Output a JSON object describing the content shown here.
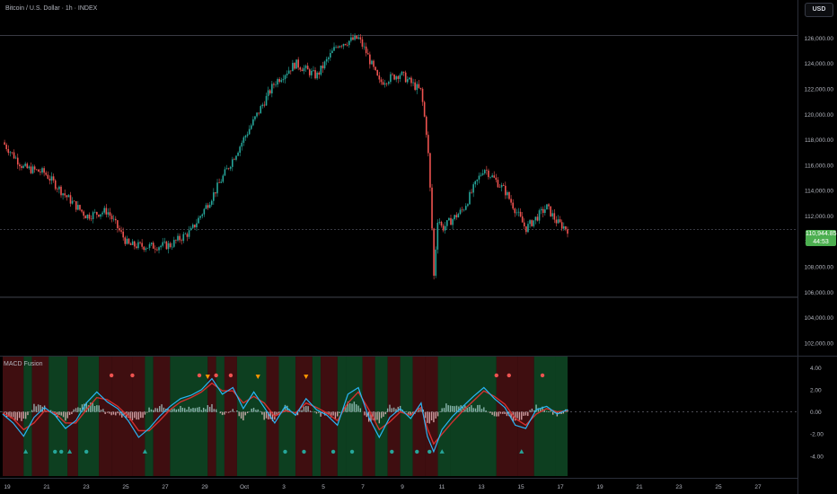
{
  "header": {
    "title": "Bitcoin / U.S. Dollar · 1h · INDEX",
    "currency": "USD"
  },
  "indicator": {
    "title": "MACD Fusion"
  },
  "price_tag": {
    "price": "110,944.85",
    "countdown": "44:53"
  },
  "colors": {
    "up": "#26a69a",
    "down": "#ef5350",
    "macd": "#2962ff",
    "signal": "#4caf50",
    "hist_pos": "#b2dfdb",
    "hist_neg": "#ffcdd2",
    "price_tag": "#4caf50"
  },
  "chart_data": [
    {
      "type": "line",
      "style": "candlestick",
      "x_axis": {
        "labels": [
          "19",
          "21",
          "23",
          "25",
          "27",
          "29",
          "Oct",
          "3",
          "5",
          "7",
          "9",
          "11",
          "13",
          "15",
          "17",
          "19",
          "21",
          "23",
          "25",
          "27"
        ]
      },
      "y_axis": {
        "range": [
          101000,
          129000
        ],
        "ticks": [
          102000,
          104000,
          106000,
          108000,
          110000,
          112000,
          114000,
          116000,
          118000,
          120000,
          122000,
          124000,
          126000,
          128000
        ],
        "tick_labels": [
          "102,000.00",
          "104,000.00",
          "106,000.00",
          "108,000.00",
          "110,000.00",
          "112,000.00",
          "114,000.00",
          "116,000.00",
          "118,000.00",
          "120,000.00",
          "122,000.00",
          "124,000.00",
          "126,000.00",
          "128,000.00"
        ]
      },
      "horizontal_lines": [
        126200,
        110944.85,
        105600
      ],
      "close_path": [
        [
          0,
          117800
        ],
        [
          1,
          115800
        ],
        [
          2,
          115400
        ],
        [
          3,
          113600
        ],
        [
          4,
          112000
        ],
        [
          5,
          112400
        ],
        [
          6,
          109700
        ],
        [
          7,
          109600
        ],
        [
          8,
          109700
        ],
        [
          9,
          110800
        ],
        [
          10,
          113500
        ],
        [
          11,
          116500
        ],
        [
          12,
          119500
        ],
        [
          13,
          122500
        ],
        [
          14,
          124000
        ],
        [
          15,
          123000
        ],
        [
          16,
          125500
        ],
        [
          17,
          126000
        ],
        [
          17.4,
          124800
        ],
        [
          18,
          122500
        ],
        [
          19,
          123200
        ],
        [
          20,
          121800
        ],
        [
          20.3,
          118000
        ],
        [
          20.5,
          112000
        ],
        [
          20.6,
          107000
        ],
        [
          20.8,
          112000
        ],
        [
          21,
          111000
        ],
        [
          22,
          112500
        ],
        [
          23,
          115800
        ],
        [
          24,
          114000
        ],
        [
          25,
          111000
        ],
        [
          26,
          112700
        ],
        [
          26.5,
          111500
        ],
        [
          27,
          110944.85
        ]
      ],
      "last_price": 110944.85
    },
    {
      "type": "line",
      "name": "MACD Fusion",
      "y_axis": {
        "range": [
          -5.8,
          5.0
        ],
        "ticks": [
          4,
          2,
          0,
          -2,
          -4
        ],
        "tick_labels": [
          "4.00",
          "2.00",
          "0.00",
          "-2.00",
          "-4.00"
        ]
      },
      "macd": [
        [
          0,
          -0.2
        ],
        [
          0.5,
          -1.0
        ],
        [
          1,
          -2.2
        ],
        [
          1.5,
          -0.5
        ],
        [
          2,
          0.4
        ],
        [
          2.5,
          -0.3
        ],
        [
          3,
          -1.5
        ],
        [
          3.5,
          -0.8
        ],
        [
          4,
          0.8
        ],
        [
          4.5,
          1.8
        ],
        [
          5,
          0.9
        ],
        [
          5.5,
          0.3
        ],
        [
          6,
          -0.8
        ],
        [
          6.5,
          -2.3
        ],
        [
          7,
          -1.5
        ],
        [
          7.5,
          -0.4
        ],
        [
          8,
          0.5
        ],
        [
          8.5,
          1.2
        ],
        [
          9,
          1.5
        ],
        [
          9.5,
          2.0
        ],
        [
          10,
          3.0
        ],
        [
          10.5,
          1.6
        ],
        [
          11,
          2.2
        ],
        [
          11.5,
          0.3
        ],
        [
          12,
          1.8
        ],
        [
          12.5,
          0.4
        ],
        [
          13,
          -1.0
        ],
        [
          13.5,
          0.5
        ],
        [
          14,
          -0.3
        ],
        [
          14.5,
          1.2
        ],
        [
          15,
          0.2
        ],
        [
          15.5,
          -0.3
        ],
        [
          16,
          -1.2
        ],
        [
          16.5,
          1.6
        ],
        [
          17,
          2.2
        ],
        [
          17.5,
          -0.5
        ],
        [
          18,
          -2.3
        ],
        [
          18.5,
          -0.5
        ],
        [
          19,
          0.3
        ],
        [
          19.5,
          -0.6
        ],
        [
          20,
          0.8
        ],
        [
          20.3,
          -2.2
        ],
        [
          20.6,
          -3.6
        ],
        [
          21,
          -1.6
        ],
        [
          21.5,
          -0.4
        ],
        [
          22,
          0.5
        ],
        [
          22.5,
          1.4
        ],
        [
          23,
          2.2
        ],
        [
          23.5,
          1.2
        ],
        [
          24,
          0.4
        ],
        [
          24.5,
          -1.2
        ],
        [
          25,
          -1.5
        ],
        [
          25.5,
          0.2
        ],
        [
          26,
          0.5
        ],
        [
          26.5,
          -0.2
        ],
        [
          27,
          0.2
        ]
      ],
      "signal": [
        [
          0,
          -0.1
        ],
        [
          0.5,
          -0.6
        ],
        [
          1,
          -1.6
        ],
        [
          1.5,
          -1.0
        ],
        [
          2,
          0.1
        ],
        [
          2.5,
          -0.1
        ],
        [
          3,
          -1.0
        ],
        [
          3.5,
          -1.0
        ],
        [
          4,
          0.2
        ],
        [
          4.5,
          1.3
        ],
        [
          5,
          1.1
        ],
        [
          5.5,
          0.5
        ],
        [
          6,
          -0.4
        ],
        [
          6.5,
          -1.7
        ],
        [
          7,
          -1.7
        ],
        [
          7.5,
          -0.8
        ],
        [
          8,
          0.2
        ],
        [
          8.5,
          0.9
        ],
        [
          9,
          1.3
        ],
        [
          9.5,
          1.8
        ],
        [
          10,
          2.6
        ],
        [
          10.5,
          1.9
        ],
        [
          11,
          1.9
        ],
        [
          11.5,
          0.8
        ],
        [
          12,
          1.4
        ],
        [
          12.5,
          0.8
        ],
        [
          13,
          -0.4
        ],
        [
          13.5,
          0.1
        ],
        [
          14,
          -0.1
        ],
        [
          14.5,
          0.8
        ],
        [
          15,
          0.4
        ],
        [
          15.5,
          -0.1
        ],
        [
          16,
          -0.8
        ],
        [
          16.5,
          0.8
        ],
        [
          17,
          1.8
        ],
        [
          17.5,
          0.2
        ],
        [
          18,
          -1.6
        ],
        [
          18.5,
          -0.9
        ],
        [
          19,
          0.0
        ],
        [
          19.5,
          -0.3
        ],
        [
          20,
          0.4
        ],
        [
          20.3,
          -1.5
        ],
        [
          20.6,
          -2.9
        ],
        [
          21,
          -2.0
        ],
        [
          21.5,
          -0.9
        ],
        [
          22,
          0.1
        ],
        [
          22.5,
          1.0
        ],
        [
          23,
          1.9
        ],
        [
          23.5,
          1.4
        ],
        [
          24,
          0.7
        ],
        [
          24.5,
          -0.6
        ],
        [
          25,
          -1.2
        ],
        [
          25.5,
          -0.2
        ],
        [
          26,
          0.3
        ],
        [
          26.5,
          0.0
        ],
        [
          27,
          0.1
        ]
      ],
      "bg_bands": [
        [
          0,
          1,
          "r"
        ],
        [
          1,
          1.4,
          "g"
        ],
        [
          1.4,
          2.2,
          "r"
        ],
        [
          2.2,
          3.1,
          "g"
        ],
        [
          3.1,
          3.6,
          "r"
        ],
        [
          3.6,
          4.6,
          "g"
        ],
        [
          4.6,
          5.2,
          "r"
        ],
        [
          5.2,
          6.2,
          "r"
        ],
        [
          6.2,
          6.8,
          "r"
        ],
        [
          6.8,
          7.2,
          "g"
        ],
        [
          7.2,
          8.0,
          "r"
        ],
        [
          8.0,
          9.8,
          "g"
        ],
        [
          9.8,
          10.2,
          "r"
        ],
        [
          10.2,
          10.6,
          "g"
        ],
        [
          10.6,
          11.2,
          "r"
        ],
        [
          11.2,
          12.6,
          "g"
        ],
        [
          12.6,
          13.2,
          "r"
        ],
        [
          13.2,
          14.0,
          "g"
        ],
        [
          14.0,
          14.8,
          "r"
        ],
        [
          14.8,
          15.2,
          "g"
        ],
        [
          15.2,
          16.0,
          "r"
        ],
        [
          16.0,
          16.4,
          "g"
        ],
        [
          16.4,
          17.2,
          "g"
        ],
        [
          17.2,
          17.8,
          "r"
        ],
        [
          17.8,
          18.4,
          "g"
        ],
        [
          18.4,
          19.0,
          "r"
        ],
        [
          19.0,
          19.6,
          "g"
        ],
        [
          19.6,
          20.2,
          "r"
        ],
        [
          20.2,
          20.8,
          "r"
        ],
        [
          20.8,
          21.4,
          "g"
        ],
        [
          21.4,
          23.6,
          "g"
        ],
        [
          23.6,
          24.6,
          "r"
        ],
        [
          24.6,
          25.4,
          "r"
        ],
        [
          25.4,
          26.4,
          "g"
        ],
        [
          26.4,
          27,
          "g"
        ]
      ],
      "markers": [
        {
          "x": 5.2,
          "y": 3.3,
          "kind": "dot",
          "color": "#ef5350"
        },
        {
          "x": 6.2,
          "y": 3.3,
          "kind": "dot",
          "color": "#ef5350"
        },
        {
          "x": 9.4,
          "y": 3.3,
          "kind": "dot",
          "color": "#ef5350"
        },
        {
          "x": 10.2,
          "y": 3.3,
          "kind": "dot",
          "color": "#ef5350"
        },
        {
          "x": 10.9,
          "y": 3.3,
          "kind": "dot",
          "color": "#ef5350"
        },
        {
          "x": 9.8,
          "y": 3.2,
          "kind": "tri-down",
          "color": "#ff9800"
        },
        {
          "x": 12.2,
          "y": 3.2,
          "kind": "tri-down",
          "color": "#ff9800"
        },
        {
          "x": 14.5,
          "y": 3.2,
          "kind": "tri-down",
          "color": "#ff9800"
        },
        {
          "x": 23.6,
          "y": 3.3,
          "kind": "dot",
          "color": "#ef5350"
        },
        {
          "x": 24.2,
          "y": 3.3,
          "kind": "dot",
          "color": "#ef5350"
        },
        {
          "x": 25.8,
          "y": 3.3,
          "kind": "dot",
          "color": "#ef5350"
        },
        {
          "x": 1.1,
          "y": -3.6,
          "kind": "tri-up",
          "color": "#26a69a"
        },
        {
          "x": 2.5,
          "y": -3.6,
          "kind": "dot",
          "color": "#26a69a"
        },
        {
          "x": 2.8,
          "y": -3.6,
          "kind": "dot",
          "color": "#26a69a"
        },
        {
          "x": 3.2,
          "y": -3.6,
          "kind": "tri-up",
          "color": "#26a69a"
        },
        {
          "x": 4.0,
          "y": -3.6,
          "kind": "dot",
          "color": "#26a69a"
        },
        {
          "x": 6.8,
          "y": -3.6,
          "kind": "tri-up",
          "color": "#26a69a"
        },
        {
          "x": 13.5,
          "y": -3.6,
          "kind": "dot",
          "color": "#26a69a"
        },
        {
          "x": 14.4,
          "y": -3.6,
          "kind": "dot",
          "color": "#26a69a"
        },
        {
          "x": 15.8,
          "y": -3.6,
          "kind": "dot",
          "color": "#26a69a"
        },
        {
          "x": 16.7,
          "y": -3.6,
          "kind": "dot",
          "color": "#26a69a"
        },
        {
          "x": 18.6,
          "y": -3.6,
          "kind": "dot",
          "color": "#26a69a"
        },
        {
          "x": 19.8,
          "y": -3.6,
          "kind": "dot",
          "color": "#26a69a"
        },
        {
          "x": 20.4,
          "y": -3.6,
          "kind": "dot",
          "color": "#26a69a"
        },
        {
          "x": 21.0,
          "y": -3.6,
          "kind": "tri-up",
          "color": "#26a69a"
        },
        {
          "x": 24.8,
          "y": -3.6,
          "kind": "tri-up",
          "color": "#26a69a"
        }
      ]
    }
  ]
}
